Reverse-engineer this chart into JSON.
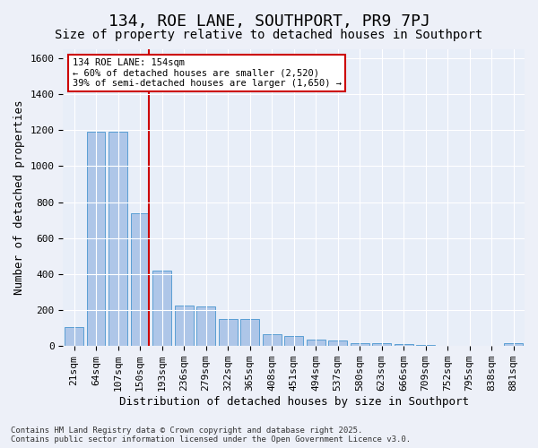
{
  "title": "134, ROE LANE, SOUTHPORT, PR9 7PJ",
  "subtitle": "Size of property relative to detached houses in Southport",
  "xlabel": "Distribution of detached houses by size in Southport",
  "ylabel": "Number of detached properties",
  "categories": [
    "21sqm",
    "64sqm",
    "107sqm",
    "150sqm",
    "193sqm",
    "236sqm",
    "279sqm",
    "322sqm",
    "365sqm",
    "408sqm",
    "451sqm",
    "494sqm",
    "537sqm",
    "580sqm",
    "623sqm",
    "666sqm",
    "709sqm",
    "752sqm",
    "795sqm",
    "838sqm",
    "881sqm"
  ],
  "values": [
    105,
    1190,
    1190,
    740,
    420,
    225,
    220,
    150,
    150,
    65,
    55,
    35,
    30,
    15,
    15,
    10,
    5,
    0,
    0,
    0,
    15
  ],
  "bar_color": "#aec6e8",
  "bar_edge_color": "#5a9fd4",
  "background_color": "#e8eef8",
  "fig_background_color": "#edf0f8",
  "grid_color": "#ffffff",
  "vline_color": "#cc0000",
  "vline_x": 3.425,
  "annotation_text": "134 ROE LANE: 154sqm\n← 60% of detached houses are smaller (2,520)\n39% of semi-detached houses are larger (1,650) →",
  "annotation_box_color": "#cc0000",
  "ylim": [
    0,
    1650
  ],
  "yticks": [
    0,
    200,
    400,
    600,
    800,
    1000,
    1200,
    1400,
    1600
  ],
  "footer_text": "Contains HM Land Registry data © Crown copyright and database right 2025.\nContains public sector information licensed under the Open Government Licence v3.0.",
  "title_fontsize": 13,
  "subtitle_fontsize": 10,
  "tick_fontsize": 8,
  "ylabel_fontsize": 9,
  "xlabel_fontsize": 9
}
